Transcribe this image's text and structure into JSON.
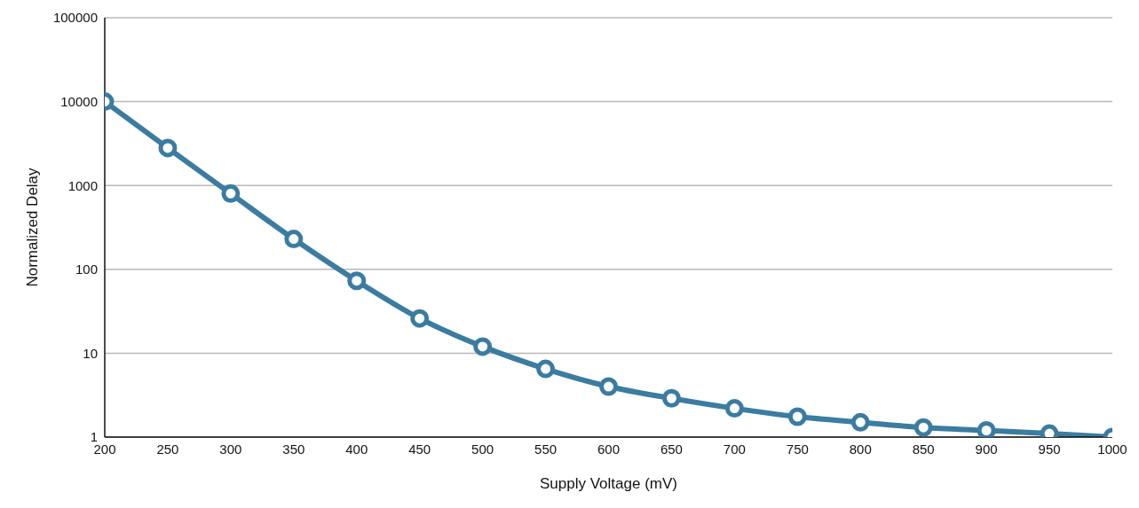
{
  "chart_data": {
    "type": "line",
    "xlabel": "Supply Voltage (mV)",
    "ylabel": "Normalized Delay",
    "x": [
      200,
      250,
      300,
      350,
      400,
      450,
      500,
      550,
      600,
      650,
      700,
      750,
      800,
      850,
      900,
      950,
      1000
    ],
    "series": [
      {
        "color": "#3b7ca0",
        "values": [
          10000,
          2800,
          800,
          230,
          73,
          26,
          12,
          6.5,
          4.0,
          2.9,
          2.2,
          1.75,
          1.5,
          1.3,
          1.2,
          1.1,
          1
        ]
      }
    ],
    "xlim": [
      200,
      1000
    ],
    "xticks": [
      200,
      250,
      300,
      350,
      400,
      450,
      500,
      550,
      600,
      650,
      700,
      750,
      800,
      850,
      900,
      950,
      1000
    ],
    "ylim": [
      1,
      100000
    ],
    "yticks": [
      1,
      10,
      100,
      1000,
      10000,
      100000
    ],
    "log": "y",
    "grid": "y",
    "marker": "circle",
    "line_style": "solid",
    "legend": false
  }
}
